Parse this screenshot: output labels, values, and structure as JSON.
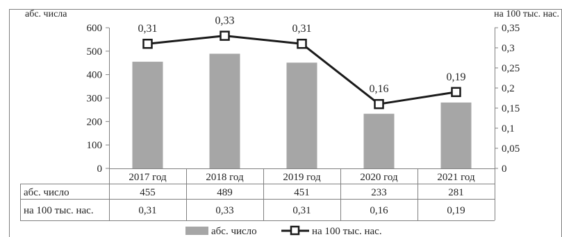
{
  "chart_data": {
    "type": "bar+line",
    "categories": [
      "2017 год",
      "2018 год",
      "2019 год",
      "2020 год",
      "2021 год"
    ],
    "series": [
      {
        "name": "абс. число",
        "type": "bar",
        "axis": "left",
        "values": [
          455,
          489,
          451,
          233,
          281
        ],
        "labels": [
          "455",
          "489",
          "451",
          "233",
          "281"
        ],
        "color": "#a6a6a6"
      },
      {
        "name": "на 100 тыс. нас.",
        "type": "line",
        "axis": "right",
        "values": [
          0.31,
          0.33,
          0.31,
          0.16,
          0.19
        ],
        "labels": [
          "0,31",
          "0,33",
          "0,31",
          "0,16",
          "0,19"
        ],
        "color": "#1a1a1a"
      }
    ],
    "y_left": {
      "label": "абс. числа",
      "min": 0,
      "max": 600,
      "ticks": [
        0,
        100,
        200,
        300,
        400,
        500,
        600
      ],
      "tick_labels": [
        "0",
        "100",
        "200",
        "300",
        "400",
        "500",
        "600"
      ]
    },
    "y_right": {
      "label": "на 100 тыс. нас.",
      "min": 0,
      "max": 0.35,
      "ticks": [
        0,
        0.05,
        0.1,
        0.15,
        0.2,
        0.25,
        0.3,
        0.35
      ],
      "tick_labels": [
        "0",
        "0,05",
        "0,1",
        "0,15",
        "0,2",
        "0,25",
        "0,3",
        "0,35"
      ]
    },
    "grid": false,
    "legend_position": "bottom",
    "data_table": true
  }
}
